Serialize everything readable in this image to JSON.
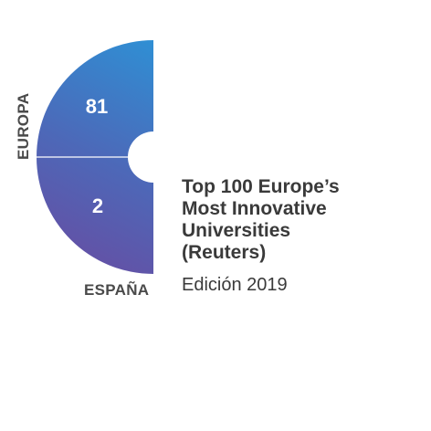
{
  "chart_data": {
    "type": "pie",
    "title_lines": [
      "Top 100 Europe’s",
      "Most Innovative",
      "Universities",
      "(Reuters)"
    ],
    "subtitle": "Edición 2019",
    "segments": [
      {
        "label": "EUROPA",
        "value": 81,
        "value_label": "81",
        "color": "#2f8fd4"
      },
      {
        "label": "ESPAÑA",
        "value": 2,
        "value_label": "2",
        "color": "#6a4aa0"
      }
    ]
  }
}
